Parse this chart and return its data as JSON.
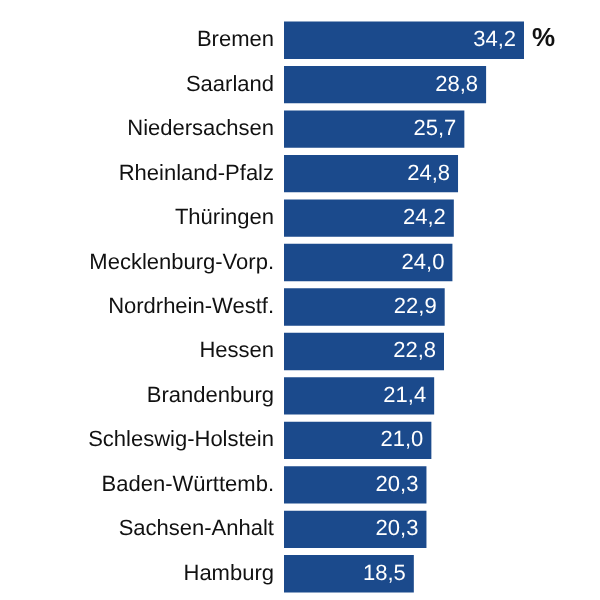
{
  "chart_data": {
    "type": "bar",
    "orientation": "horizontal",
    "categories": [
      "Bremen",
      "Saarland",
      "Niedersachsen",
      "Rheinland-Pfalz",
      "Thüringen",
      "Mecklenburg-Vorp.",
      "Nordrhein-Westf.",
      "Hessen",
      "Brandenburg",
      "Schleswig-Holstein",
      "Baden-Württemb.",
      "Sachsen-Anhalt",
      "Hamburg"
    ],
    "values": [
      34.2,
      28.8,
      25.7,
      24.8,
      24.2,
      24.0,
      22.9,
      22.8,
      21.4,
      21.0,
      20.3,
      20.3,
      18.5
    ],
    "value_labels": [
      "34,2",
      "28,8",
      "25,7",
      "24,8",
      "24,2",
      "24,0",
      "22,9",
      "22,8",
      "21,4",
      "21,0",
      "20,3",
      "20,3",
      "18,5"
    ],
    "color": "#1b4a8c",
    "annotations": [
      "%"
    ]
  }
}
